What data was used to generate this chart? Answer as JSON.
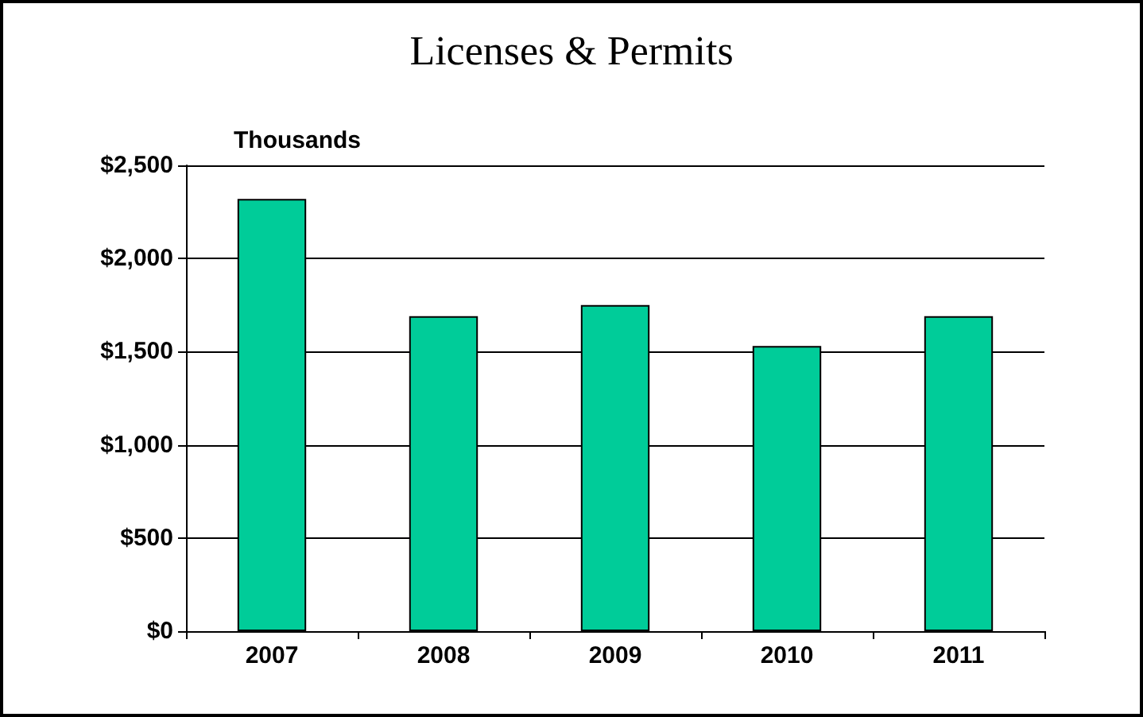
{
  "chart_data": {
    "type": "bar",
    "title": "Licenses & Permits",
    "ylabel": "Thousands",
    "categories": [
      "2007",
      "2008",
      "2009",
      "2010",
      "2011"
    ],
    "values": [
      2320,
      1690,
      1750,
      1530,
      1690
    ],
    "color": "#00cc99",
    "ylim": [
      0,
      2500
    ],
    "yticks": [
      {
        "value": 0,
        "label": "$0"
      },
      {
        "value": 500,
        "label": "$500"
      },
      {
        "value": 1000,
        "label": "$1,000"
      },
      {
        "value": 1500,
        "label": "$1,500"
      },
      {
        "value": 2000,
        "label": "$2,000"
      },
      {
        "value": 2500,
        "label": "$2,500"
      }
    ],
    "grid": "y"
  }
}
